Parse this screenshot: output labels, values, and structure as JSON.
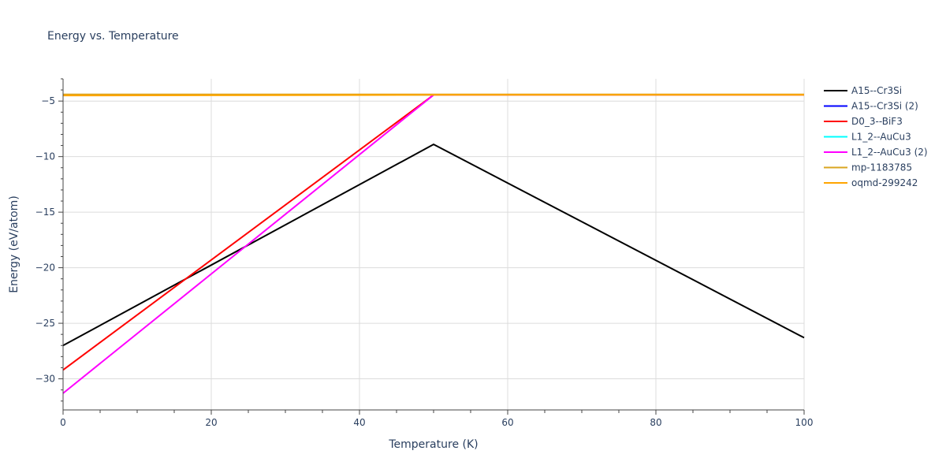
{
  "chart_data": {
    "type": "line",
    "title": "Energy vs. Temperature",
    "xlabel": "Temperature (K)",
    "ylabel": "Energy (eV/atom)",
    "xlim": [
      0,
      100
    ],
    "ylim": [
      -32.8,
      -3.0
    ],
    "xticks": [
      0,
      20,
      40,
      60,
      80,
      100
    ],
    "xtick_labels": [
      "0",
      "20",
      "40",
      "60",
      "80",
      "100"
    ],
    "yticks": [
      -30,
      -25,
      -20,
      -15,
      -10,
      -5
    ],
    "ytick_labels": [
      "−30",
      "−25",
      "−20",
      "−15",
      "−10",
      "−5"
    ],
    "grid": true,
    "legend_position": "right",
    "series": [
      {
        "name": "A15--Cr3Si",
        "color": "#000000",
        "x": [
          0,
          50,
          100
        ],
        "y": [
          -27.0,
          -8.9,
          -26.3
        ]
      },
      {
        "name": "A15--Cr3Si (2)",
        "color": "#0000ff",
        "x": [
          0,
          50,
          100
        ],
        "y": [
          -4.45,
          -4.45,
          -4.45
        ]
      },
      {
        "name": "D0_3--BiF3",
        "color": "#ff0000",
        "x": [
          0,
          50,
          100
        ],
        "y": [
          -29.2,
          -4.45,
          -4.45
        ]
      },
      {
        "name": "L1_2--AuCu3",
        "color": "#00ffff",
        "x": [
          0,
          50,
          100
        ],
        "y": [
          -4.45,
          -4.45,
          -4.45
        ]
      },
      {
        "name": "L1_2--AuCu3 (2)",
        "color": "#ff00ff",
        "x": [
          0,
          50,
          100
        ],
        "y": [
          -31.3,
          -4.45,
          -4.45
        ]
      },
      {
        "name": "mp-1183785",
        "color": "#daa520",
        "x": [
          0,
          50,
          100
        ],
        "y": [
          -4.4,
          -4.4,
          -4.4
        ]
      },
      {
        "name": "oqmd-299242",
        "color": "#ffa500",
        "x": [
          0,
          50,
          100
        ],
        "y": [
          -4.5,
          -4.45,
          -4.45
        ]
      }
    ]
  }
}
